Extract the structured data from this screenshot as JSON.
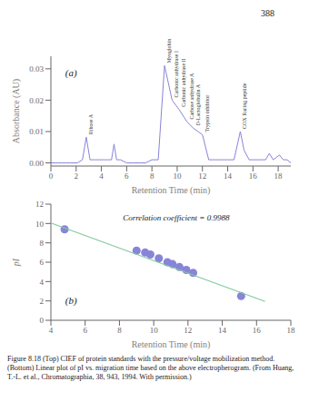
{
  "page_number": "388",
  "caption": "Figure 8.18  (Top) CIEF of protein standards with the pressure/voltage mobilization method. (Bottom) Linear plot of pI vs. migration time based on the above electropherogram. (From Huang, T.-L. et al., Chromatographia, 38, 943, 1994. With permission.)",
  "chart_data": [
    {
      "type": "line",
      "xlabel": "Retention Time (min)",
      "ylabel": "Absorbance (AU)",
      "xlim": [
        0,
        19
      ],
      "ylim": [
        -0.001,
        0.034
      ],
      "xticks": [
        0,
        2,
        4,
        6,
        8,
        10,
        12,
        14,
        16,
        18
      ],
      "yticks": [
        {
          "value": 0,
          "label": "0.00"
        },
        0.01,
        0.02,
        0.03
      ],
      "x": [
        0.0,
        0.3,
        0.6,
        0.9,
        1.2,
        1.5,
        1.8,
        2.1,
        2.5,
        2.8,
        3.1,
        3.5,
        3.8,
        4.2,
        4.5,
        4.8,
        5.0,
        5.2,
        5.5,
        6.0,
        6.5,
        7.0,
        7.5,
        8.0,
        8.5,
        9.0,
        9.6,
        10.15,
        10.8,
        11.3,
        12.0,
        12.5,
        13.0,
        13.5,
        14.0,
        14.5,
        15.0,
        15.3,
        15.7,
        16.0,
        16.5,
        17.0,
        17.3,
        17.6,
        18.1,
        18.4,
        18.7,
        19.0
      ],
      "values": [
        0.0,
        0.0,
        0.0,
        0.0,
        0.0,
        0.0,
        0.0,
        0.0,
        0.001,
        0.0082,
        0.001,
        0.001,
        0.001,
        0.001,
        0.001,
        0.001,
        0.006,
        0.001,
        0.001,
        0.0,
        0.0,
        0.0,
        0.0,
        0.001,
        0.001,
        0.031,
        0.02,
        0.017,
        0.013,
        0.011,
        0.009,
        0.001,
        0.001,
        0.001,
        0.001,
        0.001,
        0.01,
        0.004,
        0.001,
        0.001,
        0.001,
        0.001,
        0.003,
        0.001,
        0.0025,
        0.001,
        0.001,
        0.0
      ],
      "annotations": [
        {
          "text": "(a)"
        },
        {
          "x": 2.8,
          "y": 0.0082,
          "text": "Ribose A"
        },
        {
          "x": 9.0,
          "y": 0.031,
          "text": "Myoglobin"
        },
        {
          "x": 9.6,
          "y": 0.02,
          "text": "Carbonic anhydrase I"
        },
        {
          "x": 10.15,
          "y": 0.017,
          "text": "Carbonic anhydrase II"
        },
        {
          "x": 10.8,
          "y": 0.013,
          "text": "Carbose anhydrase A"
        },
        {
          "x": 11.3,
          "y": 0.011,
          "text": "D-Lactoglobulin A"
        },
        {
          "x": 12.0,
          "y": 0.009,
          "text": "Trypsin inhibitor"
        },
        {
          "x": 15.0,
          "y": 0.01,
          "text": "COX Racing peptide"
        }
      ]
    },
    {
      "type": "scatter",
      "xlabel": "Retention Time (min)",
      "ylabel": "pI",
      "xlim": [
        4,
        18
      ],
      "ylim": [
        0,
        12
      ],
      "xticks": [
        4,
        6,
        8,
        10,
        12,
        14,
        16,
        18
      ],
      "yticks": [
        0,
        2,
        4,
        6,
        8,
        10,
        12
      ],
      "series": [
        {
          "type": "scatter",
          "x": [
            4.8,
            9.0,
            9.5,
            9.8,
            10.3,
            10.8,
            11.1,
            11.5,
            11.9,
            12.3,
            15.1
          ],
          "values": [
            9.4,
            7.2,
            7.0,
            6.8,
            6.4,
            6.0,
            5.8,
            5.5,
            5.2,
            4.9,
            2.5
          ]
        },
        {
          "type": "line",
          "x": [
            4.0,
            16.5
          ],
          "values": [
            10.05,
            1.95
          ]
        }
      ],
      "annotations": [
        {
          "text": "(b)"
        },
        {
          "text": "Correlation coefficient = 0.9988"
        }
      ]
    }
  ]
}
